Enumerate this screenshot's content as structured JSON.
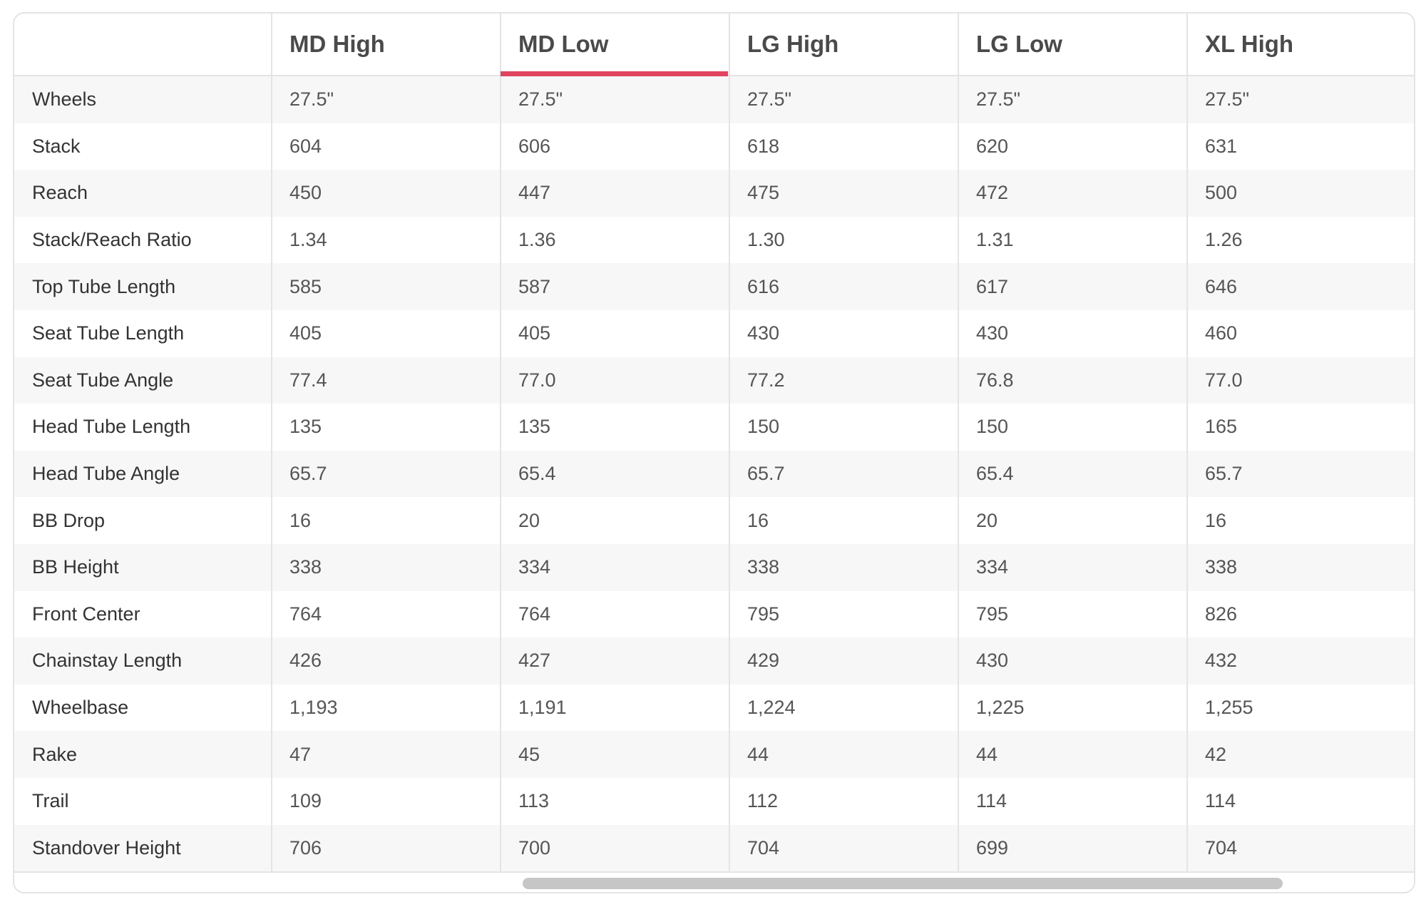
{
  "table": {
    "columns": [
      "MD High",
      "MD Low",
      "LG High",
      "LG Low",
      "XL High"
    ],
    "rows": [
      {
        "label": "Wheels",
        "values": [
          "27.5\"",
          "27.5\"",
          "27.5\"",
          "27.5\"",
          "27.5\""
        ]
      },
      {
        "label": "Stack",
        "values": [
          "604",
          "606",
          "618",
          "620",
          "631"
        ]
      },
      {
        "label": "Reach",
        "values": [
          "450",
          "447",
          "475",
          "472",
          "500"
        ]
      },
      {
        "label": "Stack/Reach Ratio",
        "values": [
          "1.34",
          "1.36",
          "1.30",
          "1.31",
          "1.26"
        ]
      },
      {
        "label": "Top Tube Length",
        "values": [
          "585",
          "587",
          "616",
          "617",
          "646"
        ]
      },
      {
        "label": "Seat Tube Length",
        "values": [
          "405",
          "405",
          "430",
          "430",
          "460"
        ]
      },
      {
        "label": "Seat Tube Angle",
        "values": [
          "77.4",
          "77.0",
          "77.2",
          "76.8",
          "77.0"
        ]
      },
      {
        "label": "Head Tube Length",
        "values": [
          "135",
          "135",
          "150",
          "150",
          "165"
        ]
      },
      {
        "label": "Head Tube Angle",
        "values": [
          "65.7",
          "65.4",
          "65.7",
          "65.4",
          "65.7"
        ]
      },
      {
        "label": "BB Drop",
        "values": [
          "16",
          "20",
          "16",
          "20",
          "16"
        ]
      },
      {
        "label": "BB Height",
        "values": [
          "338",
          "334",
          "338",
          "334",
          "338"
        ]
      },
      {
        "label": "Front Center",
        "values": [
          "764",
          "764",
          "795",
          "795",
          "826"
        ]
      },
      {
        "label": "Chainstay Length",
        "values": [
          "426",
          "427",
          "429",
          "430",
          "432"
        ]
      },
      {
        "label": "Wheelbase",
        "values": [
          "1,193",
          "1,191",
          "1,224",
          "1,225",
          "1,255"
        ]
      },
      {
        "label": "Rake",
        "values": [
          "47",
          "45",
          "44",
          "44",
          "42"
        ]
      },
      {
        "label": "Trail",
        "values": [
          "109",
          "113",
          "112",
          "114",
          "114"
        ]
      },
      {
        "label": "Standover Height",
        "values": [
          "706",
          "700",
          "704",
          "699",
          "704"
        ]
      }
    ]
  }
}
